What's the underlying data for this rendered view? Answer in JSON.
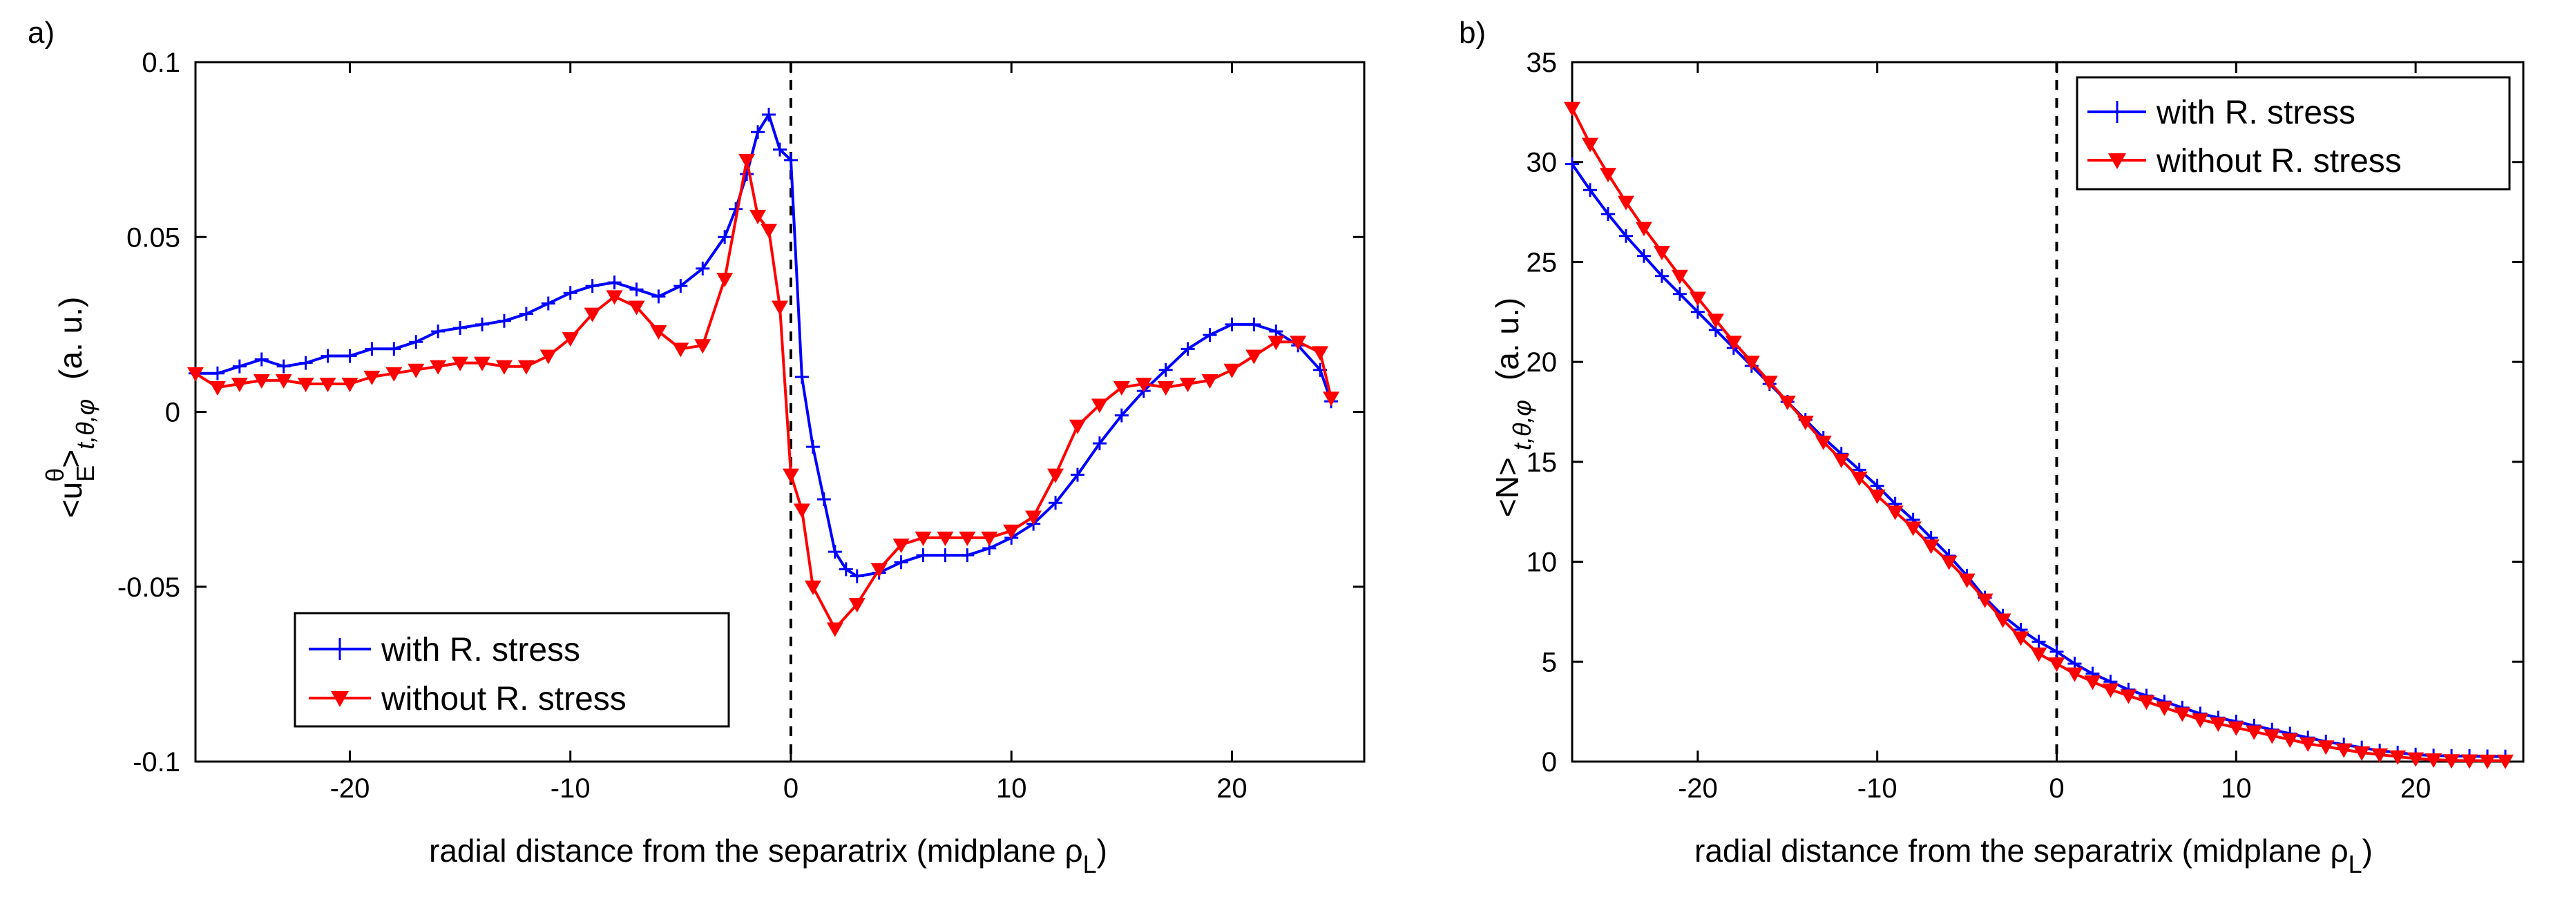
{
  "colors": {
    "blue": "#0000ff",
    "red": "#ff0000"
  },
  "chart_data": [
    {
      "type": "line",
      "panel_label": "a)",
      "title": "",
      "xlabel": "radial distance from the separatrix  (midplane ρ",
      "xlabel_sub": "L",
      "ylabel_main": "<u",
      "ylabel_sub": "E",
      "ylabel_sup": "θ",
      "ylabel_close": ">",
      "ylabel_avg": "t,θ,φ",
      "ylabel_units": "(a. u.)",
      "xlim": [
        -27,
        26
      ],
      "ylim": [
        -0.1,
        0.1
      ],
      "xticks": [
        -20,
        -10,
        0,
        10,
        20
      ],
      "xtick_labels": [
        "-20",
        "-10",
        "0",
        "10",
        "20"
      ],
      "yticks": [
        -0.1,
        -0.05,
        0,
        0.05,
        0.1
      ],
      "ytick_labels": [
        "-0.1",
        "-0.05",
        "0",
        "0.05",
        "0.1"
      ],
      "separatrix_x": 0,
      "legend_position": "bottom-left",
      "series": [
        {
          "name": "with R. stress",
          "color": "blue",
          "marker": "plus",
          "x": [
            -27,
            -26,
            -25,
            -24,
            -23,
            -22,
            -21,
            -20,
            -19,
            -18,
            -17,
            -16,
            -15,
            -14,
            -13,
            -12,
            -11,
            -10,
            -9,
            -8,
            -7,
            -6,
            -5,
            -4,
            -3,
            -2.5,
            -2,
            -1.5,
            -1,
            -0.5,
            0,
            0.5,
            1,
            1.5,
            2,
            2.5,
            3,
            4,
            5,
            6,
            7,
            8,
            9,
            10,
            11,
            12,
            13,
            14,
            15,
            16,
            17,
            18,
            19,
            20,
            21,
            22,
            23,
            24,
            24.5
          ],
          "y": [
            0.011,
            0.011,
            0.013,
            0.015,
            0.013,
            0.014,
            0.016,
            0.016,
            0.018,
            0.018,
            0.02,
            0.023,
            0.024,
            0.025,
            0.026,
            0.028,
            0.031,
            0.034,
            0.036,
            0.037,
            0.035,
            0.033,
            0.036,
            0.041,
            0.05,
            0.058,
            0.068,
            0.08,
            0.085,
            0.075,
            0.072,
            0.01,
            -0.01,
            -0.025,
            -0.04,
            -0.045,
            -0.047,
            -0.046,
            -0.043,
            -0.041,
            -0.041,
            -0.041,
            -0.039,
            -0.036,
            -0.032,
            -0.026,
            -0.018,
            -0.009,
            -0.001,
            0.006,
            0.012,
            0.018,
            0.022,
            0.025,
            0.025,
            0.023,
            0.019,
            0.012,
            0.003
          ]
        },
        {
          "name": "without R. stress",
          "color": "red",
          "marker": "triangle-down",
          "x": [
            -27,
            -26,
            -25,
            -24,
            -23,
            -22,
            -21,
            -20,
            -19,
            -18,
            -17,
            -16,
            -15,
            -14,
            -13,
            -12,
            -11,
            -10,
            -9,
            -8,
            -7,
            -6,
            -5,
            -4,
            -3,
            -2,
            -1.5,
            -1,
            -0.5,
            0,
            0.5,
            1,
            2,
            3,
            4,
            5,
            6,
            7,
            8,
            9,
            10,
            11,
            12,
            13,
            14,
            15,
            16,
            17,
            18,
            19,
            20,
            21,
            22,
            23,
            24,
            24.5
          ],
          "y": [
            0.011,
            0.007,
            0.008,
            0.009,
            0.009,
            0.008,
            0.008,
            0.008,
            0.01,
            0.011,
            0.012,
            0.013,
            0.014,
            0.014,
            0.013,
            0.013,
            0.016,
            0.021,
            0.028,
            0.033,
            0.03,
            0.023,
            0.018,
            0.019,
            0.038,
            0.072,
            0.056,
            0.052,
            0.03,
            -0.018,
            -0.028,
            -0.05,
            -0.062,
            -0.055,
            -0.045,
            -0.038,
            -0.036,
            -0.036,
            -0.036,
            -0.036,
            -0.034,
            -0.03,
            -0.018,
            -0.004,
            0.002,
            0.007,
            0.008,
            0.007,
            0.008,
            0.009,
            0.012,
            0.016,
            0.02,
            0.02,
            0.017,
            0.004
          ]
        }
      ]
    },
    {
      "type": "line",
      "panel_label": "b)",
      "title": "",
      "xlabel": "radial distance from the separatrix  (midplane ρ",
      "xlabel_sub": "L",
      "ylabel_main": "<N>",
      "ylabel_avg": "t,θ,φ",
      "ylabel_units": "(a. u.)",
      "xlim": [
        -27,
        26
      ],
      "ylim": [
        0,
        35
      ],
      "xticks": [
        -20,
        -10,
        0,
        10,
        20
      ],
      "xtick_labels": [
        "-20",
        "-10",
        "0",
        "10",
        "20"
      ],
      "yticks": [
        0,
        5,
        10,
        15,
        20,
        25,
        30,
        35
      ],
      "ytick_labels": [
        "0",
        "5",
        "10",
        "15",
        "20",
        "25",
        "30",
        "35"
      ],
      "separatrix_x": 0,
      "legend_position": "top-right",
      "series": [
        {
          "name": "with R. stress",
          "color": "blue",
          "marker": "plus",
          "x": [
            -27,
            -26,
            -25,
            -24,
            -23,
            -22,
            -21,
            -20,
            -19,
            -18,
            -17,
            -16,
            -15,
            -14,
            -13,
            -12,
            -11,
            -10,
            -9,
            -8,
            -7,
            -6,
            -5,
            -4,
            -3,
            -2,
            -1,
            0,
            1,
            2,
            3,
            4,
            5,
            6,
            7,
            8,
            9,
            10,
            11,
            12,
            13,
            14,
            15,
            16,
            17,
            18,
            19,
            20,
            21,
            22,
            23,
            24,
            25
          ],
          "y": [
            29.9,
            28.6,
            27.4,
            26.3,
            25.3,
            24.3,
            23.4,
            22.5,
            21.6,
            20.7,
            19.8,
            18.9,
            18.0,
            17.1,
            16.2,
            15.4,
            14.6,
            13.8,
            12.9,
            12.1,
            11.2,
            10.3,
            9.3,
            8.2,
            7.3,
            6.6,
            6.0,
            5.5,
            4.9,
            4.4,
            4.0,
            3.6,
            3.3,
            3.0,
            2.7,
            2.4,
            2.2,
            2.0,
            1.8,
            1.6,
            1.4,
            1.2,
            1.0,
            0.85,
            0.7,
            0.55,
            0.45,
            0.35,
            0.3,
            0.28,
            0.27,
            0.26,
            0.25
          ]
        },
        {
          "name": "without R. stress",
          "color": "red",
          "marker": "triangle-down",
          "x": [
            -27,
            -26,
            -25,
            -24,
            -23,
            -22,
            -21,
            -20,
            -19,
            -18,
            -17,
            -16,
            -15,
            -14,
            -13,
            -12,
            -11,
            -10,
            -9,
            -8,
            -7,
            -6,
            -5,
            -4,
            -3,
            -2,
            -1,
            0,
            1,
            2,
            3,
            4,
            5,
            6,
            7,
            8,
            9,
            10,
            11,
            12,
            13,
            14,
            15,
            16,
            17,
            18,
            19,
            20,
            21,
            22,
            23,
            24,
            25
          ],
          "y": [
            32.7,
            30.9,
            29.4,
            28.0,
            26.7,
            25.5,
            24.3,
            23.2,
            22.1,
            21.0,
            20.0,
            19.0,
            18.0,
            17.0,
            16.0,
            15.1,
            14.2,
            13.3,
            12.5,
            11.7,
            10.8,
            10.0,
            9.1,
            8.1,
            7.1,
            6.2,
            5.4,
            4.9,
            4.4,
            4.0,
            3.6,
            3.3,
            3.0,
            2.7,
            2.4,
            2.1,
            1.9,
            1.7,
            1.5,
            1.3,
            1.1,
            0.9,
            0.75,
            0.6,
            0.45,
            0.35,
            0.25,
            0.15,
            0.1,
            0.06,
            0.05,
            0.04,
            0.04
          ]
        }
      ]
    }
  ]
}
